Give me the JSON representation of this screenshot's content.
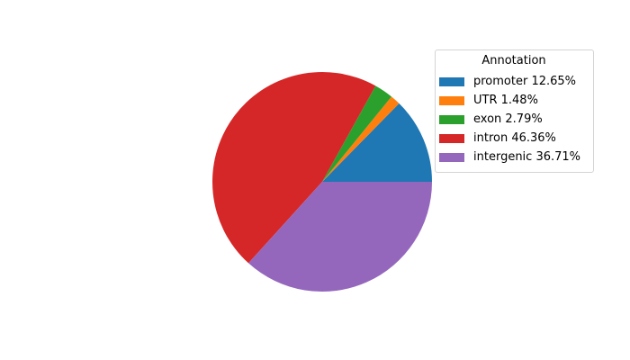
{
  "chart_data": {
    "type": "pie",
    "title": "",
    "legend_title": "Annotation",
    "legend_position": "upper right",
    "start_angle_deg": 0,
    "direction": "counterclockwise",
    "background_color": "#ffffff",
    "slices": [
      {
        "label": "promoter",
        "value_pct": 12.65,
        "legend_text": "promoter 12.65%",
        "color": "#1f77b4"
      },
      {
        "label": "UTR",
        "value_pct": 1.48,
        "legend_text": "UTR 1.48%",
        "color": "#ff7f0e"
      },
      {
        "label": "exon",
        "value_pct": 2.79,
        "legend_text": "exon 2.79%",
        "color": "#2ca02c"
      },
      {
        "label": "intron",
        "value_pct": 46.36,
        "legend_text": "intron 46.36%",
        "color": "#d62728"
      },
      {
        "label": "intergenic",
        "value_pct": 36.71,
        "legend_text": "intergenic 36.71%",
        "color": "#9467bd"
      }
    ]
  }
}
